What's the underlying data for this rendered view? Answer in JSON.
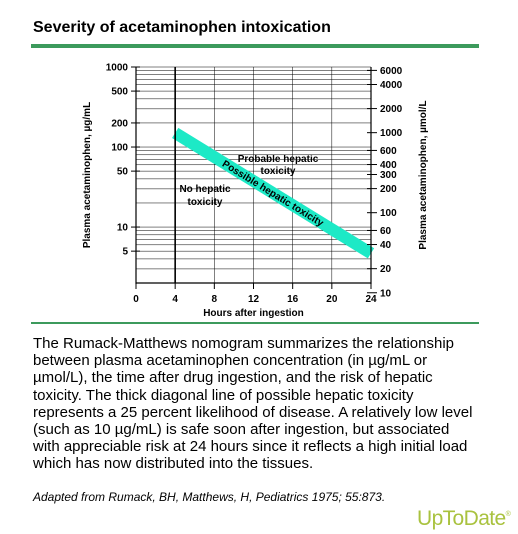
{
  "title": "Severity of acetaminophen intoxication",
  "chart_data": {
    "type": "line",
    "xlabel": "Hours after ingestion",
    "ylabel_left": "Plasma acetaminophen, µg/mL",
    "ylabel_right": "Plasma acetaminophen, µmol/L",
    "x_ticks": [
      0,
      4,
      8,
      12,
      16,
      20,
      24
    ],
    "xlim": [
      0,
      24
    ],
    "y_scale": "log",
    "ylim": [
      2,
      1000
    ],
    "left_ticks": [
      1000,
      500,
      200,
      100,
      50,
      10,
      5
    ],
    "right_ticks": [
      {
        "label": "6000",
        "ug": 906.95
      },
      {
        "label": "4000",
        "ug": 604.63
      },
      {
        "label": "2000",
        "ug": 302.32
      },
      {
        "label": "1000",
        "ug": 151.16
      },
      {
        "label": "600",
        "ug": 90.7
      },
      {
        "label": "400",
        "ug": 60.46
      },
      {
        "label": "300",
        "ug": 45.35
      },
      {
        "label": "200",
        "ug": 30.23
      },
      {
        "label": "100",
        "ug": 15.12
      },
      {
        "label": "60",
        "ug": 9.07
      },
      {
        "label": "40",
        "ug": 6.05
      },
      {
        "label": "20",
        "ug": 3.02
      },
      {
        "label": "10",
        "ug": 1.51
      }
    ],
    "series": [
      {
        "name": "Possible hepatic toxicity",
        "x": [
          4,
          24
        ],
        "y": [
          150,
          4.7
        ],
        "color": "#1de9c6"
      }
    ],
    "annotations": {
      "probable": [
        "Probable hepatic",
        "toxicity"
      ],
      "no": [
        "No hepatic",
        "toxicity"
      ]
    }
  },
  "description": "The Rumack-Matthews nomogram summarizes the relationship between plasma acetaminophen concentration (in µg/mL or µmol/L), the time after drug ingestion, and the risk of hepatic toxicity. The thick diagonal line of possible hepatic toxicity represents a 25 percent likelihood of disease. A relatively low level (such as 10 µg/mL) is safe soon after ingestion, but associated with appreciable risk at 24 hours since it reflects a high initial load which has now distributed into the tissues.",
  "citation": "Adapted from Rumack, BH, Matthews, H, Pediatrics 1975; 55:873.",
  "logo": {
    "text": "UpToDate",
    "mark": "®"
  },
  "colors": {
    "accent": "#3c9a5c",
    "band": "#1de9c6",
    "logo": "#a9c23f"
  }
}
